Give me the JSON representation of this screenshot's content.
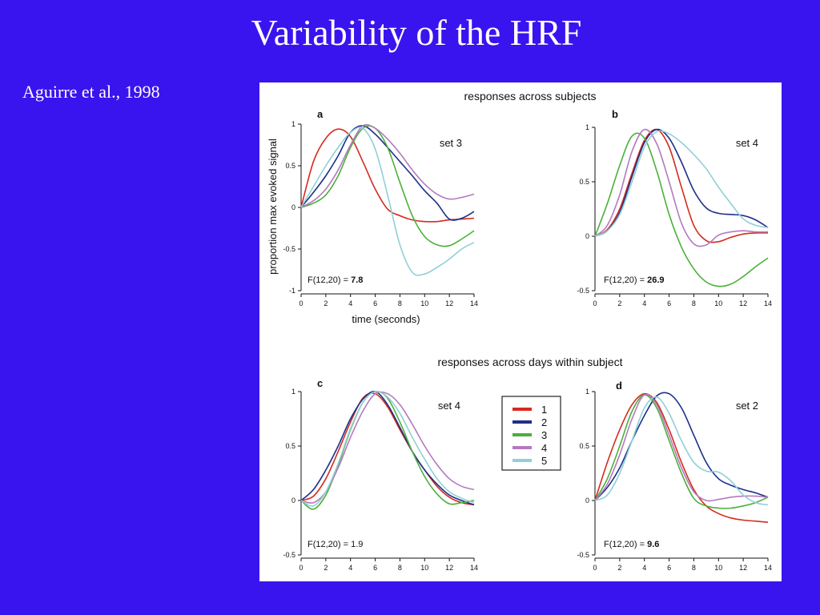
{
  "slide": {
    "title": "Variability of the HRF",
    "citation": "Aguirre et al., 1998"
  },
  "figure": {
    "top_title": "responses across subjects",
    "middle_title": "responses across days within subject",
    "ylabel": "proportion max evoked signal",
    "xlabel": "time (seconds)",
    "legend": [
      {
        "label": "1",
        "color": "#d62a1e"
      },
      {
        "label": "2",
        "color": "#1c2f8a"
      },
      {
        "label": "3",
        "color": "#4bb03a"
      },
      {
        "label": "4",
        "color": "#b579c0"
      },
      {
        "label": "5",
        "color": "#8fd0d6"
      }
    ]
  },
  "chart_data": [
    {
      "type": "line",
      "panel": "a",
      "set_label": "set 3",
      "stat_prefix": "F(12,20) = ",
      "stat_value": "7.8",
      "stat_bold": true,
      "xlabel": "time (seconds)",
      "ylabel": "proportion max evoked signal",
      "xlim": [
        0,
        14
      ],
      "ylim": [
        -1,
        1
      ],
      "xticks": [
        "0",
        "2",
        "4",
        "6",
        "8",
        "10",
        "12",
        "14"
      ],
      "yticks": [
        {
          "value": 1,
          "label": "1"
        },
        {
          "value": 0.5,
          "label": "0.5"
        },
        {
          "value": 0,
          "label": "0"
        },
        {
          "value": -0.5,
          "label": "-0.5"
        },
        {
          "value": -1,
          "label": "-1"
        }
      ],
      "grid": false,
      "x": [
        0,
        1,
        2,
        3,
        4,
        5,
        6,
        7,
        8,
        9,
        10,
        11,
        12,
        13,
        14
      ],
      "series": [
        {
          "name": "1",
          "color": "#d62a1e",
          "values": [
            0,
            0.55,
            0.83,
            0.94,
            0.85,
            0.55,
            0.22,
            -0.02,
            -0.1,
            -0.15,
            -0.17,
            -0.17,
            -0.15,
            -0.14,
            -0.13
          ]
        },
        {
          "name": "2",
          "color": "#1c2f8a",
          "values": [
            0,
            0.18,
            0.38,
            0.62,
            0.9,
            0.98,
            0.88,
            0.72,
            0.55,
            0.38,
            0.2,
            0.05,
            -0.14,
            -0.13,
            -0.05
          ]
        },
        {
          "name": "3",
          "color": "#4bb03a",
          "values": [
            0,
            0.05,
            0.15,
            0.38,
            0.72,
            0.95,
            0.95,
            0.72,
            0.3,
            -0.1,
            -0.35,
            -0.45,
            -0.46,
            -0.38,
            -0.28
          ]
        },
        {
          "name": "4",
          "color": "#b579c0",
          "values": [
            0,
            0.08,
            0.22,
            0.45,
            0.75,
            0.98,
            0.95,
            0.82,
            0.65,
            0.45,
            0.28,
            0.16,
            0.1,
            0.12,
            0.16
          ]
        },
        {
          "name": "5",
          "color": "#8fd0d6",
          "values": [
            0,
            0.25,
            0.5,
            0.72,
            0.9,
            0.95,
            0.7,
            0.15,
            -0.45,
            -0.78,
            -0.8,
            -0.72,
            -0.62,
            -0.5,
            -0.42
          ]
        }
      ]
    },
    {
      "type": "line",
      "panel": "b",
      "set_label": "set 4",
      "stat_prefix": "F(12,20) = ",
      "stat_value": "26.9",
      "stat_bold": true,
      "xlim": [
        0,
        14
      ],
      "ylim": [
        -0.5,
        1
      ],
      "xticks": [
        "0",
        "2",
        "4",
        "6",
        "8",
        "10",
        "12",
        "14"
      ],
      "yticks": [
        {
          "value": 1,
          "label": "1"
        },
        {
          "value": 0.5,
          "label": "0.5"
        },
        {
          "value": 0,
          "label": "0"
        },
        {
          "value": -0.5,
          "label": "-0.5"
        }
      ],
      "grid": false,
      "x": [
        0,
        1,
        2,
        3,
        4,
        5,
        6,
        7,
        8,
        9,
        10,
        11,
        12,
        13,
        14
      ],
      "series": [
        {
          "name": "1",
          "color": "#d62a1e",
          "values": [
            0,
            0.06,
            0.25,
            0.58,
            0.88,
            0.98,
            0.82,
            0.45,
            0.1,
            -0.04,
            -0.05,
            -0.01,
            0.02,
            0.03,
            0.03
          ]
        },
        {
          "name": "2",
          "color": "#1c2f8a",
          "values": [
            0,
            0.05,
            0.22,
            0.55,
            0.86,
            0.98,
            0.9,
            0.68,
            0.42,
            0.26,
            0.21,
            0.2,
            0.19,
            0.15,
            0.08
          ]
        },
        {
          "name": "3",
          "color": "#4bb03a",
          "values": [
            0,
            0.3,
            0.65,
            0.92,
            0.9,
            0.6,
            0.2,
            -0.1,
            -0.3,
            -0.42,
            -0.46,
            -0.44,
            -0.37,
            -0.28,
            -0.2
          ]
        },
        {
          "name": "4",
          "color": "#b579c0",
          "values": [
            0,
            0.1,
            0.38,
            0.78,
            0.98,
            0.85,
            0.5,
            0.12,
            -0.07,
            -0.08,
            0.01,
            0.04,
            0.05,
            0.04,
            0.04
          ]
        },
        {
          "name": "5",
          "color": "#8fd0d6",
          "values": [
            0,
            0.05,
            0.2,
            0.5,
            0.82,
            0.96,
            0.94,
            0.86,
            0.75,
            0.62,
            0.45,
            0.3,
            0.16,
            0.1,
            0.08
          ]
        }
      ]
    },
    {
      "type": "line",
      "panel": "c",
      "set_label": "set 4",
      "stat_prefix": "F(12,20) = ",
      "stat_value": "1.9",
      "stat_bold": false,
      "xlim": [
        0,
        14
      ],
      "ylim": [
        -0.5,
        1
      ],
      "xticks": [
        "0",
        "2",
        "4",
        "6",
        "8",
        "10",
        "12",
        "14"
      ],
      "yticks": [
        {
          "value": 1,
          "label": "1"
        },
        {
          "value": 0.5,
          "label": "0.5"
        },
        {
          "value": 0,
          "label": "0"
        },
        {
          "value": -0.5,
          "label": "-0.5"
        }
      ],
      "grid": false,
      "x": [
        0,
        1,
        2,
        3,
        4,
        5,
        6,
        7,
        8,
        9,
        10,
        11,
        12,
        13,
        14
      ],
      "series": [
        {
          "name": "1",
          "color": "#d62a1e",
          "values": [
            0,
            0.04,
            0.2,
            0.45,
            0.72,
            0.94,
            0.98,
            0.86,
            0.65,
            0.45,
            0.28,
            0.13,
            0.03,
            -0.02,
            -0.04
          ]
        },
        {
          "name": "2",
          "color": "#1c2f8a",
          "values": [
            0,
            0.1,
            0.28,
            0.5,
            0.75,
            0.93,
            1.0,
            0.88,
            0.67,
            0.45,
            0.28,
            0.15,
            0.05,
            0.0,
            -0.04
          ]
        },
        {
          "name": "3",
          "color": "#4bb03a",
          "values": [
            0,
            -0.08,
            0.05,
            0.32,
            0.65,
            0.9,
            1.0,
            0.94,
            0.72,
            0.45,
            0.22,
            0.06,
            -0.03,
            -0.02,
            0.0
          ]
        },
        {
          "name": "4",
          "color": "#b579c0",
          "values": [
            0,
            -0.02,
            0.08,
            0.3,
            0.58,
            0.82,
            0.98,
            0.98,
            0.88,
            0.7,
            0.5,
            0.33,
            0.2,
            0.13,
            0.1
          ]
        },
        {
          "name": "5",
          "color": "#8fd0d6",
          "values": [
            0,
            -0.05,
            0.08,
            0.34,
            0.66,
            0.9,
            1.0,
            0.95,
            0.8,
            0.58,
            0.38,
            0.2,
            0.08,
            0.02,
            -0.02
          ]
        }
      ]
    },
    {
      "type": "line",
      "panel": "d",
      "set_label": "set 2",
      "stat_prefix": "F(12,20) = ",
      "stat_value": "9.6",
      "stat_bold": true,
      "xlim": [
        0,
        14
      ],
      "ylim": [
        -0.5,
        1
      ],
      "xticks": [
        "0",
        "2",
        "4",
        "6",
        "8",
        "10",
        "12",
        "14"
      ],
      "yticks": [
        {
          "value": 1,
          "label": "1"
        },
        {
          "value": 0.5,
          "label": "0.5"
        },
        {
          "value": 0,
          "label": "0"
        },
        {
          "value": -0.5,
          "label": "-0.5"
        }
      ],
      "grid": false,
      "x": [
        0,
        1,
        2,
        3,
        4,
        5,
        6,
        7,
        8,
        9,
        10,
        11,
        12,
        13,
        14
      ],
      "series": [
        {
          "name": "1",
          "color": "#d62a1e",
          "values": [
            0,
            0.35,
            0.65,
            0.88,
            0.98,
            0.9,
            0.65,
            0.35,
            0.1,
            -0.05,
            -0.12,
            -0.16,
            -0.18,
            -0.19,
            -0.2
          ]
        },
        {
          "name": "2",
          "color": "#1c2f8a",
          "values": [
            0,
            0.12,
            0.3,
            0.55,
            0.78,
            0.96,
            0.98,
            0.85,
            0.6,
            0.35,
            0.2,
            0.14,
            0.1,
            0.07,
            0.03
          ]
        },
        {
          "name": "3",
          "color": "#4bb03a",
          "values": [
            0,
            0.2,
            0.5,
            0.82,
            0.97,
            0.85,
            0.55,
            0.25,
            0.02,
            -0.05,
            -0.07,
            -0.07,
            -0.05,
            -0.02,
            0.03
          ]
        },
        {
          "name": "4",
          "color": "#b579c0",
          "values": [
            0,
            0.15,
            0.42,
            0.75,
            0.97,
            0.88,
            0.6,
            0.3,
            0.08,
            0.0,
            0.01,
            0.03,
            0.04,
            0.04,
            0.03
          ]
        },
        {
          "name": "5",
          "color": "#8fd0d6",
          "values": [
            0,
            0.05,
            0.25,
            0.55,
            0.85,
            0.95,
            0.8,
            0.55,
            0.35,
            0.27,
            0.26,
            0.18,
            0.05,
            -0.02,
            -0.04
          ]
        }
      ]
    }
  ]
}
